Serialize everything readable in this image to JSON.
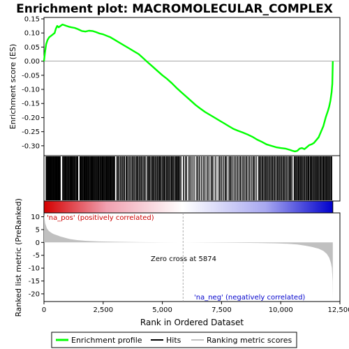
{
  "chart_data": {
    "type": "line",
    "title": "Enrichment plot: MACROMOLECULAR_COMPLEX",
    "xlabel": "Rank in Ordered Dataset",
    "ylabel_top": "Enrichment score (ES)",
    "ylabel_bottom": "Ranked list metric (PreRanked)",
    "xlim": [
      0,
      12500
    ],
    "x_ticks": [
      0,
      2500,
      5000,
      7500,
      10000,
      12500
    ],
    "x_tick_labels": [
      "0",
      "2,500",
      "5,000",
      "7,500",
      "10,000",
      "12,500"
    ],
    "es_ylim": [
      -0.335,
      0.155
    ],
    "es_ticks": [
      0.15,
      0.1,
      0.05,
      0.0,
      -0.05,
      -0.1,
      -0.15,
      -0.2,
      -0.25,
      -0.3
    ],
    "es_tick_labels": [
      "0.15",
      "0.10",
      "0.05",
      "0.00",
      "-0.05",
      "-0.10",
      "-0.15",
      "-0.20",
      "-0.25",
      "-0.30"
    ],
    "metric_ylim": [
      -23,
      11.5
    ],
    "metric_ticks": [
      10,
      5,
      0,
      -5,
      -10,
      -15,
      -20
    ],
    "metric_tick_labels": [
      "10",
      "5",
      "0",
      "-5",
      "-10",
      "-15",
      "-20"
    ],
    "grid": false,
    "enrichment_profile": {
      "name": "Enrichment profile",
      "color": "#00ff00",
      "x": [
        0,
        40,
        90,
        150,
        220,
        300,
        380,
        450,
        500,
        560,
        620,
        700,
        780,
        850,
        950,
        1050,
        1150,
        1300,
        1450,
        1600,
        1750,
        1900,
        2050,
        2200,
        2350,
        2500,
        2650,
        2800,
        3000,
        3200,
        3400,
        3600,
        3800,
        4000,
        4200,
        4400,
        4600,
        4800,
        5000,
        5200,
        5400,
        5600,
        5800,
        6000,
        6200,
        6400,
        6600,
        6800,
        7000,
        7200,
        7400,
        7600,
        7800,
        8000,
        8200,
        8400,
        8600,
        8800,
        9000,
        9200,
        9400,
        9600,
        9800,
        10000,
        10200,
        10400,
        10500,
        10600,
        10700,
        10800,
        10900,
        11000,
        11100,
        11200,
        11300,
        11400,
        11500,
        11600,
        11700,
        11800,
        11900,
        12000,
        12050,
        12100,
        12150,
        12180,
        12200
      ],
      "y": [
        0.0,
        0.03,
        0.06,
        0.075,
        0.085,
        0.09,
        0.095,
        0.1,
        0.115,
        0.125,
        0.12,
        0.125,
        0.13,
        0.128,
        0.125,
        0.122,
        0.12,
        0.118,
        0.113,
        0.107,
        0.105,
        0.108,
        0.107,
        0.103,
        0.098,
        0.095,
        0.09,
        0.085,
        0.075,
        0.065,
        0.055,
        0.045,
        0.035,
        0.025,
        0.01,
        -0.005,
        -0.02,
        -0.035,
        -0.05,
        -0.063,
        -0.078,
        -0.095,
        -0.11,
        -0.125,
        -0.14,
        -0.155,
        -0.168,
        -0.18,
        -0.19,
        -0.2,
        -0.21,
        -0.22,
        -0.23,
        -0.24,
        -0.247,
        -0.253,
        -0.26,
        -0.268,
        -0.278,
        -0.286,
        -0.295,
        -0.3,
        -0.305,
        -0.308,
        -0.31,
        -0.315,
        -0.318,
        -0.32,
        -0.318,
        -0.31,
        -0.308,
        -0.312,
        -0.305,
        -0.298,
        -0.295,
        -0.29,
        -0.28,
        -0.27,
        -0.25,
        -0.23,
        -0.2,
        -0.175,
        -0.16,
        -0.14,
        -0.11,
        -0.08,
        0.0
      ]
    },
    "ranking_metric": {
      "name": "Ranking metric scores",
      "color": "#c0c0c0",
      "x": [
        0,
        50,
        120,
        200,
        300,
        400,
        550,
        700,
        900,
        1100,
        1400,
        1800,
        2300,
        3000,
        4000,
        5000,
        5874,
        7000,
        8000,
        9000,
        9800,
        10300,
        10700,
        11000,
        11300,
        11600,
        11800,
        11950,
        12050,
        12120,
        12160,
        12190,
        12200
      ],
      "y": [
        10.8,
        7.5,
        5.5,
        4.5,
        3.8,
        3.3,
        2.8,
        2.3,
        1.8,
        1.3,
        0.9,
        0.6,
        0.4,
        0.25,
        0.12,
        0.05,
        0.0,
        -0.05,
        -0.1,
        -0.2,
        -0.35,
        -0.5,
        -0.8,
        -1.2,
        -1.7,
        -2.4,
        -3.3,
        -4.5,
        -6.0,
        -8.0,
        -10.0,
        -15.0,
        -22.0
      ]
    },
    "hit_color": "#000000",
    "hit_clusters": [
      [
        80,
        700,
        55
      ],
      [
        780,
        1450,
        40
      ],
      [
        1500,
        3000,
        95
      ],
      [
        3050,
        4300,
        45
      ],
      [
        4350,
        5800,
        60
      ],
      [
        5850,
        7300,
        32
      ],
      [
        7350,
        9000,
        45
      ],
      [
        9050,
        10500,
        55
      ],
      [
        10550,
        12180,
        75
      ]
    ],
    "heatmap_colors": [
      "#d40000",
      "#f0a0b0",
      "#ffffff",
      "#a8a8f0",
      "#0000cc"
    ],
    "zero_cross_x": 5874,
    "annotations": {
      "pos_label": "'na_pos' (positively correlated)",
      "neg_label": "'na_neg' (negatively correlated)",
      "zero_cross_label": "Zero cross at 5874",
      "pos_color": "#cc0000",
      "neg_color": "#0000cc"
    },
    "legend": {
      "placement": "bottom",
      "entries": [
        {
          "label": "Enrichment profile",
          "color": "#00ff00"
        },
        {
          "label": "Hits",
          "color": "#000000"
        },
        {
          "label": "Ranking metric scores",
          "color": "#c0c0c0"
        }
      ]
    }
  }
}
